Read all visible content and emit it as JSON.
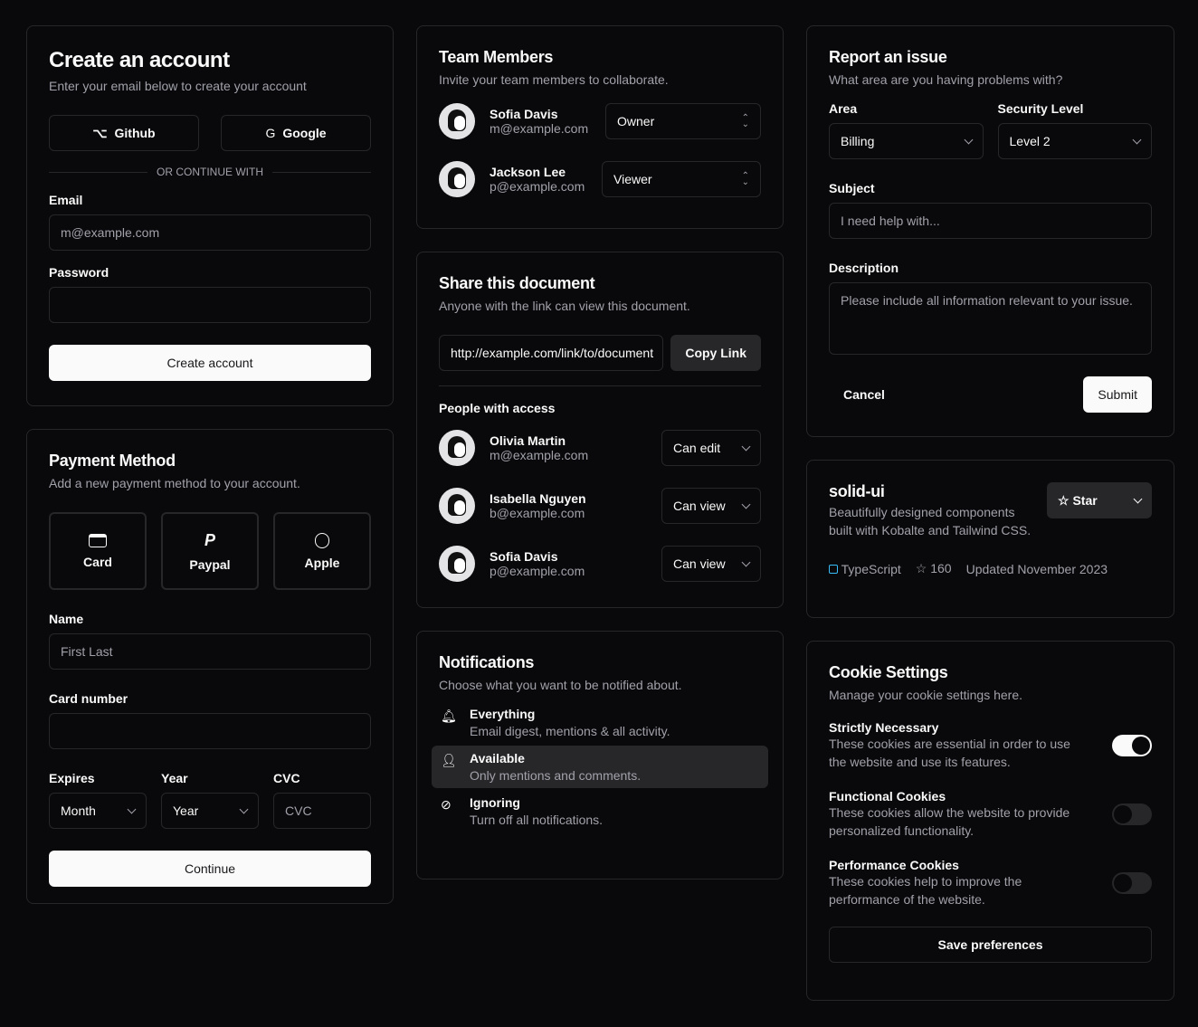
{
  "create_account": {
    "title": "Create an account",
    "subtitle": "Enter your email below to create your account",
    "github": "Github",
    "google": "Google",
    "divider": "OR CONTINUE WITH",
    "email_label": "Email",
    "email_placeholder": "m@example.com",
    "password_label": "Password",
    "submit": "Create account"
  },
  "payment": {
    "title": "Payment Method",
    "subtitle": "Add a new payment method to your account.",
    "methods": [
      {
        "label": "Card",
        "icon": "credit-card-icon"
      },
      {
        "label": "Paypal",
        "icon": "paypal-icon"
      },
      {
        "label": "Apple",
        "icon": "apple-icon"
      }
    ],
    "name_label": "Name",
    "name_placeholder": "First Last",
    "card_label": "Card number",
    "expires_label": "Expires",
    "month": "Month",
    "year_label": "Year",
    "year": "Year",
    "cvc_label": "CVC",
    "cvc_placeholder": "CVC",
    "submit": "Continue"
  },
  "team": {
    "title": "Team Members",
    "subtitle": "Invite your team members to collaborate.",
    "members": [
      {
        "name": "Sofia Davis",
        "email": "m@example.com",
        "role": "Owner"
      },
      {
        "name": "Jackson Lee",
        "email": "p@example.com",
        "role": "Viewer"
      }
    ]
  },
  "share": {
    "title": "Share this document",
    "subtitle": "Anyone with the link can view this document.",
    "link": "http://example.com/link/to/document",
    "copy": "Copy Link",
    "people_label": "People with access",
    "people": [
      {
        "name": "Olivia Martin",
        "email": "m@example.com",
        "perm": "Can edit"
      },
      {
        "name": "Isabella Nguyen",
        "email": "b@example.com",
        "perm": "Can view"
      },
      {
        "name": "Sofia Davis",
        "email": "p@example.com",
        "perm": "Can view"
      }
    ]
  },
  "notifications": {
    "title": "Notifications",
    "subtitle": "Choose what you want to be notified about.",
    "items": [
      {
        "title": "Everything",
        "desc": "Email digest, mentions & all activity.",
        "icon": "bell-icon"
      },
      {
        "title": "Available",
        "desc": "Only mentions and comments.",
        "icon": "user-icon",
        "selected": true
      },
      {
        "title": "Ignoring",
        "desc": "Turn off all notifications.",
        "icon": "eye-off-icon"
      }
    ]
  },
  "report": {
    "title": "Report an issue",
    "subtitle": "What area are you having problems with?",
    "area_label": "Area",
    "area": "Billing",
    "level_label": "Security Level",
    "level": "Level 2",
    "subject_label": "Subject",
    "subject_placeholder": "I need help with...",
    "desc_label": "Description",
    "desc_placeholder": "Please include all information relevant to your issue.",
    "cancel": "Cancel",
    "submit": "Submit"
  },
  "repo": {
    "title": "solid-ui",
    "desc": "Beautifully designed components built with Kobalte and Tailwind CSS.",
    "star": "Star",
    "language": "TypeScript",
    "stars": "160",
    "updated": "Updated November 2023",
    "lang_color": "#38bdf8"
  },
  "cookies": {
    "title": "Cookie Settings",
    "subtitle": "Manage your cookie settings here.",
    "items": [
      {
        "title": "Strictly Necessary",
        "desc": "These cookies are essential in order to use the website and use its features.",
        "on": true
      },
      {
        "title": "Functional Cookies",
        "desc": "These cookies allow the website to provide personalized functionality.",
        "on": false
      },
      {
        "title": "Performance Cookies",
        "desc": "These cookies help to improve the performance of the website.",
        "on": false
      }
    ],
    "save": "Save preferences"
  }
}
